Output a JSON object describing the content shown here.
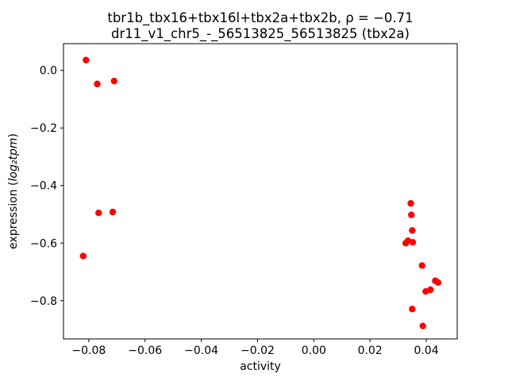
{
  "figure": {
    "title_line1": "tbr1b_tbx16+tbx16l+tbx2a+tbx2b, ρ = −0.71",
    "title_line2": "dr11_v1_chr5_-_56513825_56513825 (tbx2a)",
    "xlabel": "activity",
    "ylabel_prefix": "expression (",
    "ylabel_math": "log₂tpm",
    "ylabel_suffix": ")"
  },
  "chart_data": {
    "type": "scatter",
    "title": "tbr1b_tbx16+tbx16l+tbx2a+tbx2b, ρ = −0.71",
    "subtitle": "dr11_v1_chr5_-_56513825_56513825 (tbx2a)",
    "xlabel": "activity",
    "ylabel": "expression (log2 tpm)",
    "rho": -0.71,
    "marker_color": "#ff0000",
    "marker_size_px": 4.2,
    "grid": false,
    "legend": "none",
    "xlim": [
      -0.089,
      0.051
    ],
    "ylim": [
      -0.933,
      0.093
    ],
    "xticks": [
      -0.08,
      -0.06,
      -0.04,
      -0.02,
      0.0,
      0.02,
      0.04
    ],
    "yticks": [
      0.0,
      -0.2,
      -0.4,
      -0.6,
      -0.8
    ],
    "points": [
      [
        -0.081,
        0.036
      ],
      [
        -0.077,
        -0.047
      ],
      [
        -0.071,
        -0.037
      ],
      [
        -0.0765,
        -0.495
      ],
      [
        -0.0715,
        -0.492
      ],
      [
        -0.082,
        -0.645
      ],
      [
        0.0345,
        -0.462
      ],
      [
        0.0347,
        -0.502
      ],
      [
        0.035,
        -0.556
      ],
      [
        0.0335,
        -0.592
      ],
      [
        0.0327,
        -0.6
      ],
      [
        0.0352,
        -0.597
      ],
      [
        0.0385,
        -0.678
      ],
      [
        0.0432,
        -0.731
      ],
      [
        0.0442,
        -0.737
      ],
      [
        0.0415,
        -0.762
      ],
      [
        0.0398,
        -0.768
      ],
      [
        0.035,
        -0.829
      ],
      [
        0.0388,
        -0.888
      ]
    ]
  }
}
